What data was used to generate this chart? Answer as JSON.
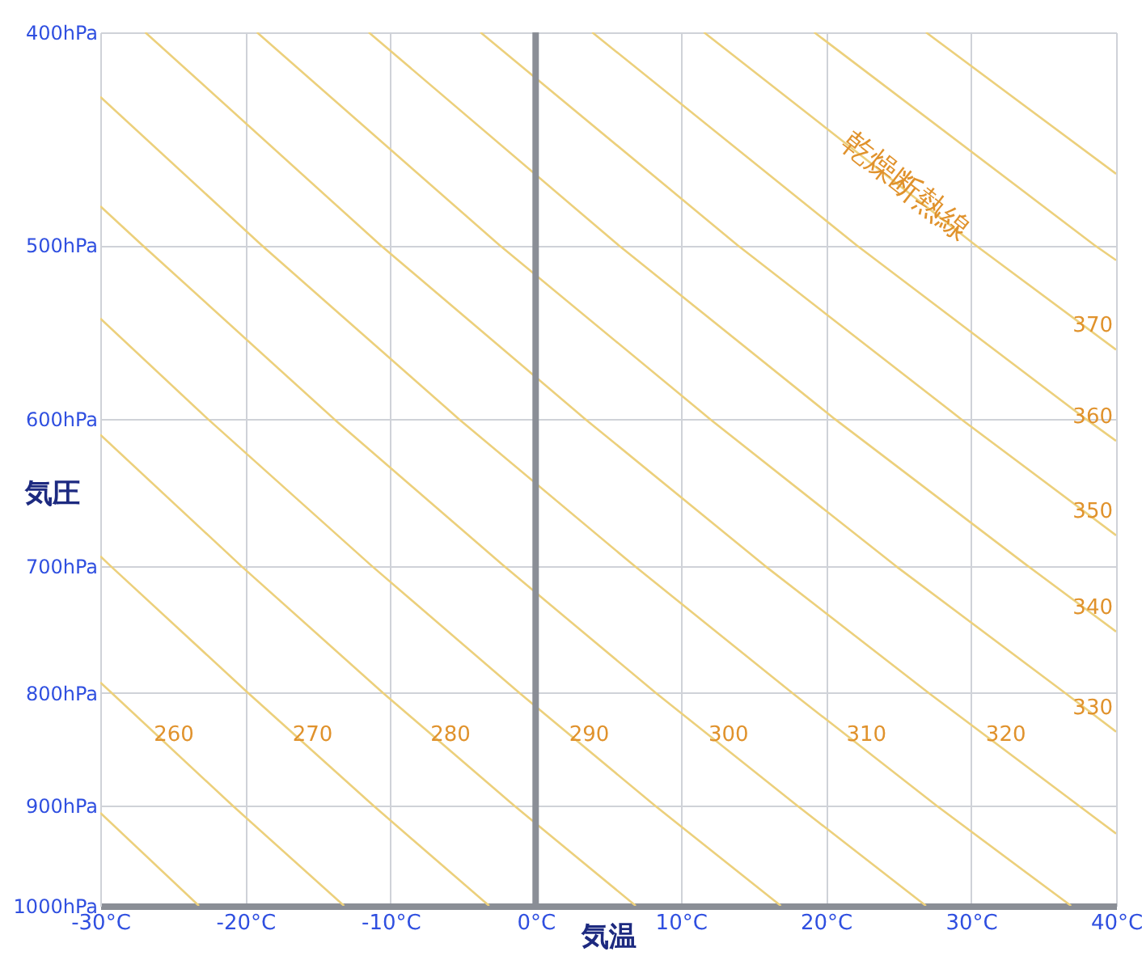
{
  "chart_data": {
    "type": "line",
    "xlabel": "気温",
    "ylabel": "気圧",
    "xlim": [
      -30,
      40
    ],
    "ylim": [
      1000,
      400
    ],
    "log": "y",
    "grid": true,
    "legend": false,
    "xticks": [
      {
        "value": -30,
        "label": "-30°C"
      },
      {
        "value": -20,
        "label": "-20°C"
      },
      {
        "value": -10,
        "label": "-10°C"
      },
      {
        "value": 0,
        "label": "0°C"
      },
      {
        "value": 10,
        "label": "10°C"
      },
      {
        "value": 20,
        "label": "20°C"
      },
      {
        "value": 30,
        "label": "30°C"
      },
      {
        "value": 40,
        "label": "40°C"
      }
    ],
    "yticks": [
      {
        "value": 400,
        "label": "400hPa"
      },
      {
        "value": 500,
        "label": "500hPa"
      },
      {
        "value": 600,
        "label": "600hPa"
      },
      {
        "value": 700,
        "label": "700hPa"
      },
      {
        "value": 800,
        "label": "800hPa"
      },
      {
        "value": 900,
        "label": "900hPa"
      },
      {
        "value": 1000,
        "label": "1000hPa"
      }
    ],
    "ref_lines": [
      {
        "axis": "x",
        "value": 0,
        "color": "#8a8e96"
      }
    ],
    "annotations": [
      {
        "text": "乾燥断熱線",
        "x": 25.5,
        "y": 470
      }
    ],
    "series": [
      {
        "color": "#ecd07c",
        "x": [
          -30,
          -23.2
        ],
        "values": [
          907,
          1000
        ]
      },
      {
        "name": "260",
        "color": "#ecd07c",
        "x": [
          -30,
          -29.2,
          -20.9,
          -13.2
        ],
        "values": [
          791,
          800,
          900,
          1000
        ]
      },
      {
        "name": "270",
        "color": "#ecd07c",
        "x": [
          -30,
          -29.3,
          -19.8,
          -11.2,
          -3.2
        ],
        "values": [
          693,
          700,
          800,
          900,
          1000
        ]
      },
      {
        "name": "280",
        "color": "#ecd07c",
        "x": [
          -30,
          -20.3,
          -10.5,
          -1.5,
          6.9
        ],
        "values": [
          610,
          700,
          800,
          900,
          1000
        ]
      },
      {
        "name": "290",
        "color": "#ecd07c",
        "x": [
          -30,
          -22.6,
          -11.3,
          -1.1,
          8.2,
          16.9
        ],
        "values": [
          540,
          600,
          700,
          800,
          900,
          1000
        ]
      },
      {
        "name": "300",
        "color": "#ecd07c",
        "x": [
          -30,
          -27.1,
          -13.9,
          -2.2,
          8.3,
          18.0,
          26.9
        ],
        "values": [
          480,
          500,
          600,
          700,
          800,
          900,
          1000
        ]
      },
      {
        "name": "310",
        "color": "#ecd07c",
        "x": [
          -30,
          -18.9,
          -5.3,
          6.8,
          17.7,
          27.6,
          36.9
        ],
        "values": [
          428,
          500,
          600,
          700,
          800,
          900,
          1000
        ]
      },
      {
        "name": "320",
        "color": "#ecd07c",
        "x": [
          -26.9,
          -10.7,
          3.4,
          15.8,
          27.1,
          37.4,
          40
        ],
        "values": [
          400,
          500,
          600,
          700,
          800,
          900,
          927
        ]
      },
      {
        "name": "330",
        "color": "#ecd07c",
        "x": [
          -19.2,
          -2.5,
          12.0,
          24.8,
          36.5,
          40
        ],
        "values": [
          400,
          500,
          600,
          700,
          800,
          833
        ]
      },
      {
        "name": "340",
        "color": "#ecd07c",
        "x": [
          -11.5,
          5.7,
          20.6,
          33.9,
          40
        ],
        "values": [
          400,
          500,
          600,
          700,
          750
        ]
      },
      {
        "name": "350",
        "color": "#ecd07c",
        "x": [
          -3.8,
          13.9,
          29.3,
          40
        ],
        "values": [
          400,
          500,
          600,
          678
        ]
      },
      {
        "name": "360",
        "color": "#ecd07c",
        "x": [
          3.9,
          22.1,
          37.9,
          40
        ],
        "values": [
          400,
          500,
          600,
          614
        ]
      },
      {
        "name": "370",
        "color": "#ecd07c",
        "x": [
          11.6,
          30.3,
          40
        ],
        "values": [
          400,
          500,
          558
        ]
      },
      {
        "color": "#ecd07c",
        "x": [
          19.2,
          38.5,
          40
        ],
        "values": [
          400,
          500,
          508
        ]
      },
      {
        "color": "#ecd07c",
        "x": [
          26.9,
          40
        ],
        "values": [
          400,
          464
        ]
      }
    ]
  }
}
